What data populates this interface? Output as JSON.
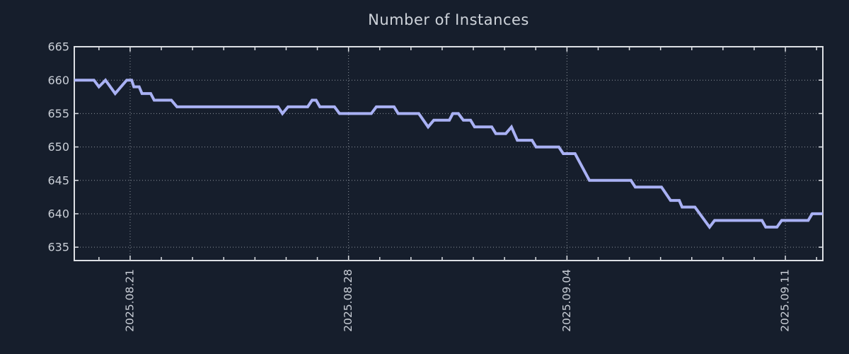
{
  "title": "Number of Instances",
  "colors": {
    "background": "#161e2c",
    "frame": "#dcdfe4",
    "grid": "#8d939c",
    "text": "#c9ced6",
    "line": "#a9b1f4"
  },
  "chart_data": {
    "type": "line",
    "title": "Number of Instances",
    "xlabel": "",
    "ylabel": "",
    "grid": true,
    "legend": "none",
    "x_unit": "days since 2025-08-19 00:00",
    "xlim": [
      0.21,
      24.2
    ],
    "ylim": [
      633,
      665
    ],
    "y_ticks": [
      635,
      640,
      645,
      650,
      655,
      660,
      665
    ],
    "x_major_ticks": [
      {
        "t": 2,
        "label": "2025.08.21"
      },
      {
        "t": 9,
        "label": "2025.08.28"
      },
      {
        "t": 16,
        "label": "2025.09.04"
      },
      {
        "t": 23,
        "label": "2025.09.11"
      }
    ],
    "x_minor_tick_interval_days": 1,
    "series": [
      {
        "name": "instances",
        "color": "#a9b1f4",
        "points": [
          [
            0.21,
            660
          ],
          [
            0.84,
            660
          ],
          [
            1.0,
            659
          ],
          [
            1.21,
            660
          ],
          [
            1.52,
            658
          ],
          [
            1.89,
            660
          ],
          [
            2.05,
            660
          ],
          [
            2.12,
            659
          ],
          [
            2.29,
            659
          ],
          [
            2.38,
            658
          ],
          [
            2.66,
            658
          ],
          [
            2.77,
            657
          ],
          [
            3.32,
            657
          ],
          [
            3.5,
            656
          ],
          [
            6.74,
            656
          ],
          [
            6.88,
            655
          ],
          [
            7.06,
            656
          ],
          [
            7.69,
            656
          ],
          [
            7.83,
            657
          ],
          [
            7.96,
            657
          ],
          [
            8.08,
            656
          ],
          [
            8.55,
            656
          ],
          [
            8.71,
            655
          ],
          [
            9.73,
            655
          ],
          [
            9.89,
            656
          ],
          [
            10.46,
            656
          ],
          [
            10.59,
            655
          ],
          [
            11.25,
            655
          ],
          [
            11.55,
            653
          ],
          [
            11.73,
            654
          ],
          [
            12.23,
            654
          ],
          [
            12.34,
            655
          ],
          [
            12.52,
            655
          ],
          [
            12.68,
            654
          ],
          [
            12.91,
            654
          ],
          [
            13.04,
            653
          ],
          [
            13.59,
            653
          ],
          [
            13.72,
            652
          ],
          [
            14.04,
            652
          ],
          [
            14.22,
            653
          ],
          [
            14.41,
            651
          ],
          [
            14.88,
            651
          ],
          [
            15.01,
            650
          ],
          [
            15.74,
            650
          ],
          [
            15.88,
            649
          ],
          [
            16.26,
            649
          ],
          [
            16.72,
            645
          ],
          [
            18.05,
            645
          ],
          [
            18.19,
            644
          ],
          [
            19.03,
            644
          ],
          [
            19.32,
            642
          ],
          [
            19.6,
            642
          ],
          [
            19.69,
            641
          ],
          [
            20.1,
            641
          ],
          [
            20.57,
            638
          ],
          [
            20.73,
            639
          ],
          [
            22.25,
            639
          ],
          [
            22.37,
            638
          ],
          [
            22.73,
            638
          ],
          [
            22.88,
            639
          ],
          [
            23.73,
            639
          ],
          [
            23.86,
            640
          ],
          [
            24.2,
            640
          ]
        ]
      }
    ]
  }
}
